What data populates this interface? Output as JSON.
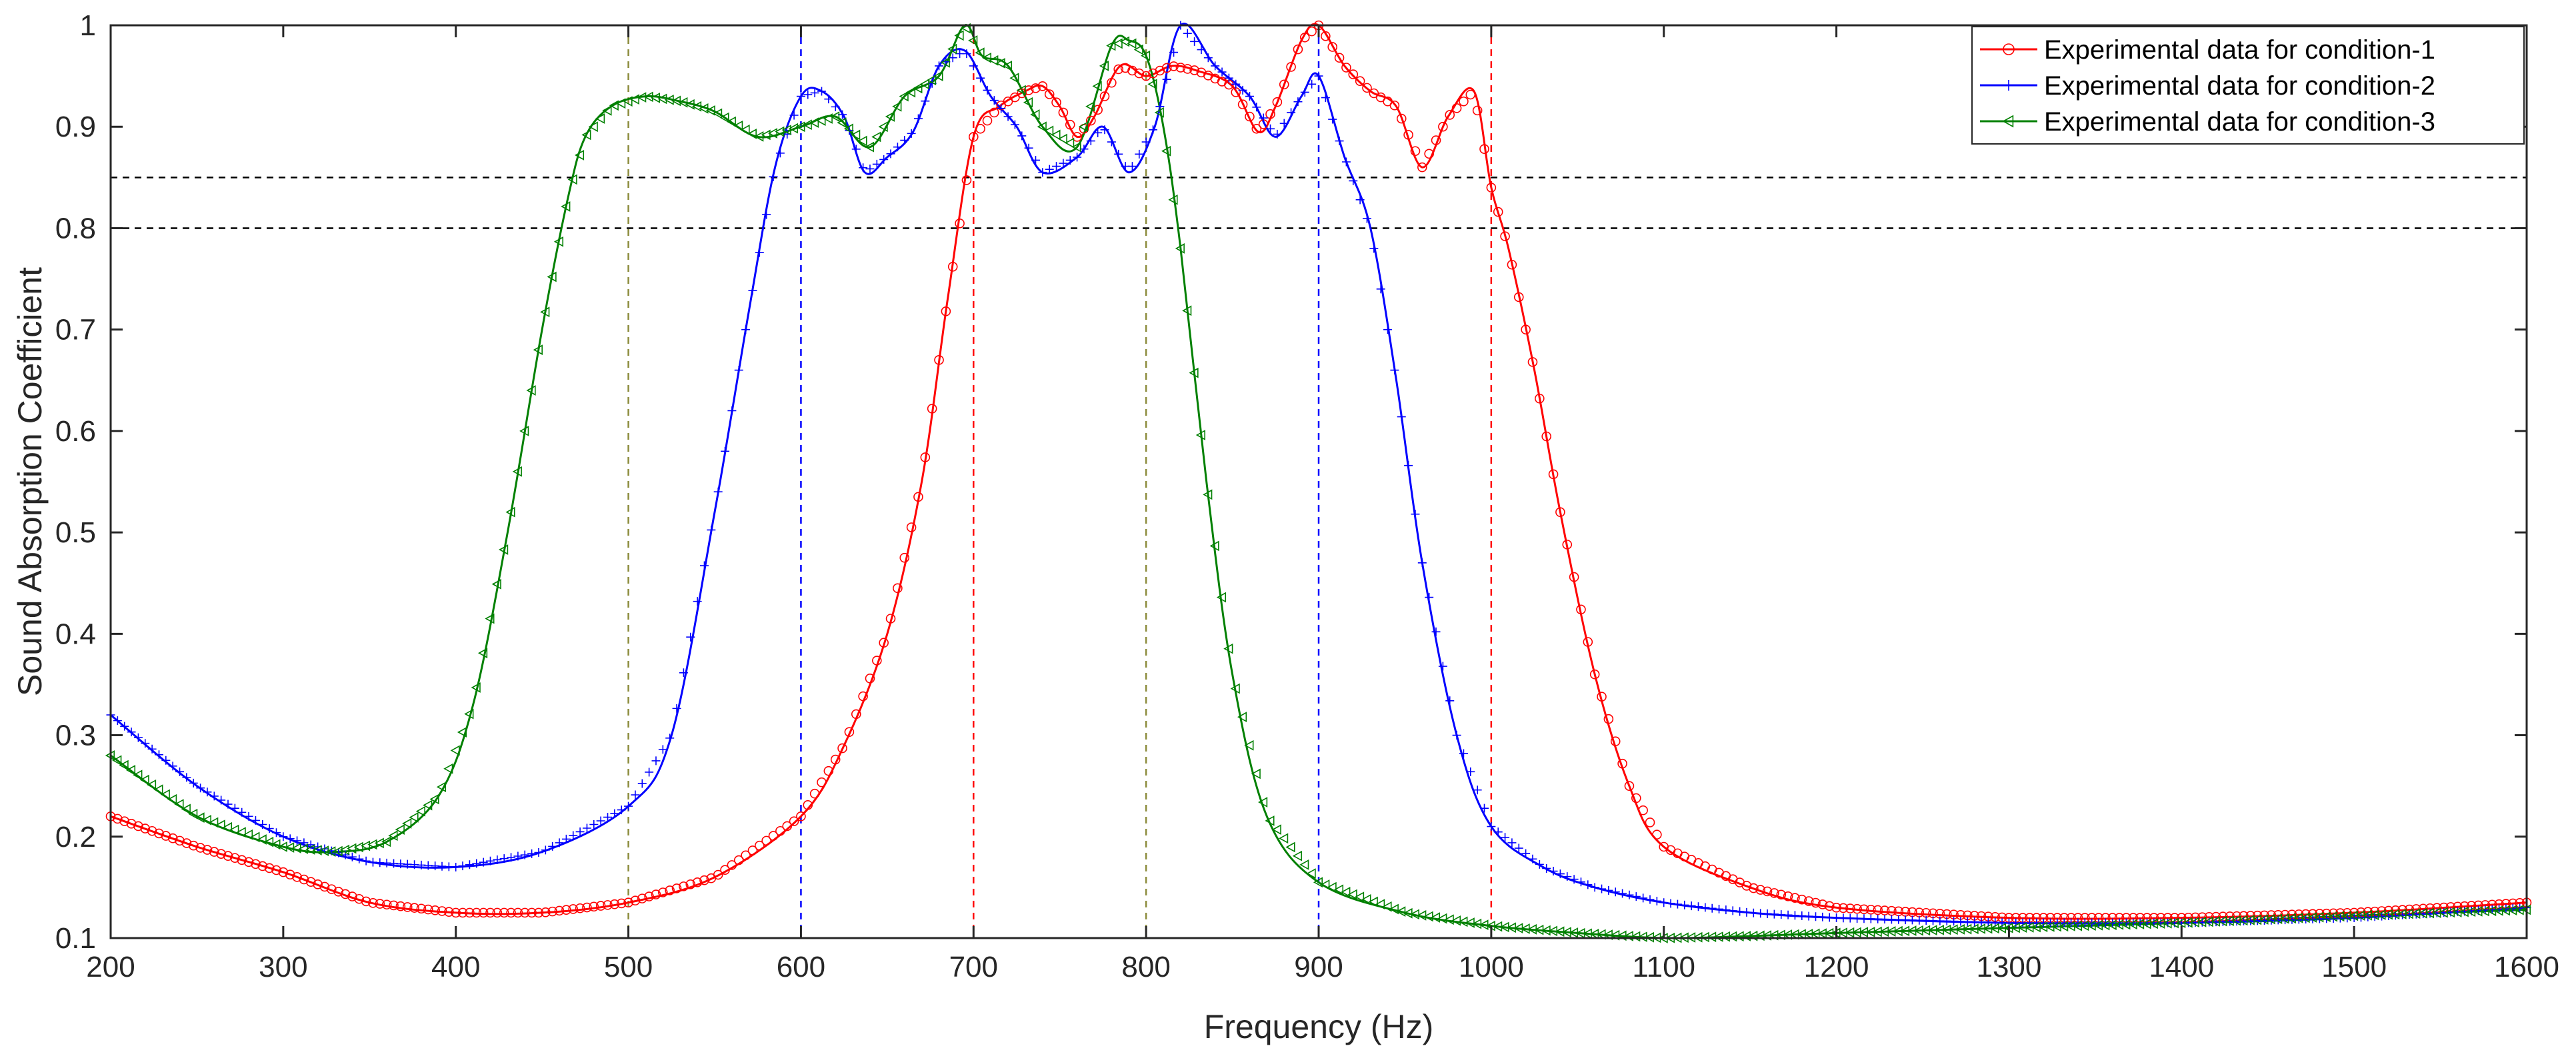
{
  "chart_data": {
    "type": "line",
    "title": "",
    "xlabel": "Frequency (Hz)",
    "ylabel": "Sound Absorption Coefficient",
    "xlim": [
      200,
      1600
    ],
    "ylim": [
      0.1,
      1.0
    ],
    "grid": false,
    "legend_position": "top-right",
    "xticks": [
      200,
      300,
      400,
      500,
      600,
      700,
      800,
      900,
      1000,
      1100,
      1200,
      1300,
      1400,
      1500,
      1600
    ],
    "yticks": [
      0.1,
      0.2,
      0.3,
      0.4,
      0.5,
      0.6,
      0.7,
      0.8,
      0.9,
      1
    ],
    "xtick_labels": [
      "200",
      "300",
      "400",
      "500",
      "600",
      "700",
      "800",
      "900",
      "1000",
      "1100",
      "1200",
      "1300",
      "1400",
      "1500",
      "1600"
    ],
    "ytick_labels": [
      "0.1",
      "0.2",
      "0.3",
      "0.4",
      "0.5",
      "0.6",
      "0.7",
      "0.8",
      "0.9",
      "1"
    ],
    "reference_lines": {
      "horizontal": [
        {
          "y": 0.85,
          "color": "#000000",
          "style": "dashed"
        },
        {
          "y": 0.8,
          "color": "#000000",
          "style": "dashed"
        }
      ],
      "vertical": [
        {
          "x": 500,
          "color": "#8c8c3c",
          "style": "dashed"
        },
        {
          "x": 600,
          "color": "#0000ff",
          "style": "dashed"
        },
        {
          "x": 700,
          "color": "#ff0000",
          "style": "dashed"
        },
        {
          "x": 800,
          "color": "#8c8c3c",
          "style": "dashed"
        },
        {
          "x": 900,
          "color": "#0000ff",
          "style": "dashed"
        },
        {
          "x": 1000,
          "color": "#ff0000",
          "style": "dashed"
        }
      ]
    },
    "series": [
      {
        "name": "Experimental data for condition-1",
        "color": "#ff0000",
        "marker": "circle",
        "x": [
          200,
          250,
          300,
          350,
          400,
          450,
          500,
          550,
          600,
          625,
          650,
          670,
          685,
          700,
          715,
          730,
          740,
          750,
          760,
          770,
          785,
          800,
          815,
          830,
          850,
          865,
          875,
          890,
          900,
          915,
          930,
          945,
          960,
          975,
          990,
          1000,
          1010,
          1025,
          1040,
          1060,
          1080,
          1100,
          1150,
          1200,
          1300,
          1400,
          1500,
          1600
        ],
        "y": [
          0.22,
          0.19,
          0.165,
          0.135,
          0.125,
          0.125,
          0.135,
          0.16,
          0.22,
          0.29,
          0.4,
          0.55,
          0.73,
          0.89,
          0.92,
          0.935,
          0.94,
          0.92,
          0.89,
          0.91,
          0.96,
          0.95,
          0.96,
          0.955,
          0.94,
          0.895,
          0.92,
          0.985,
          1.0,
          0.96,
          0.935,
          0.92,
          0.86,
          0.91,
          0.935,
          0.84,
          0.78,
          0.66,
          0.52,
          0.36,
          0.25,
          0.19,
          0.15,
          0.13,
          0.12,
          0.12,
          0.125,
          0.135
        ]
      },
      {
        "name": "Experimental data for condition-2",
        "color": "#0000ff",
        "marker": "plus",
        "x": [
          200,
          250,
          300,
          350,
          400,
          450,
          500,
          525,
          550,
          570,
          585,
          600,
          612,
          625,
          637,
          650,
          665,
          680,
          695,
          710,
          725,
          740,
          760,
          775,
          790,
          805,
          820,
          840,
          860,
          875,
          890,
          900,
          915,
          930,
          945,
          960,
          980,
          1000,
          1030,
          1060,
          1100,
          1150,
          1200,
          1300,
          1400,
          1500,
          1600
        ],
        "y": [
          0.32,
          0.25,
          0.2,
          0.175,
          0.17,
          0.185,
          0.23,
          0.3,
          0.52,
          0.72,
          0.86,
          0.93,
          0.935,
          0.91,
          0.855,
          0.87,
          0.895,
          0.96,
          0.975,
          0.93,
          0.9,
          0.855,
          0.87,
          0.9,
          0.855,
          0.9,
          1.0,
          0.96,
          0.93,
          0.89,
          0.93,
          0.95,
          0.87,
          0.8,
          0.65,
          0.47,
          0.3,
          0.21,
          0.17,
          0.15,
          0.135,
          0.125,
          0.12,
          0.115,
          0.115,
          0.12,
          0.13
        ]
      },
      {
        "name": "Experimental data for condition-3",
        "color": "#008000",
        "marker": "triangle-left",
        "x": [
          200,
          250,
          300,
          330,
          360,
          390,
          410,
          430,
          450,
          465,
          475,
          490,
          510,
          530,
          550,
          575,
          600,
          620,
          640,
          660,
          680,
          695,
          705,
          720,
          740,
          760,
          780,
          790,
          800,
          810,
          820,
          835,
          850,
          870,
          900,
          950,
          1000,
          1050,
          1100,
          1150,
          1200,
          1300,
          1400,
          1500,
          1600
        ],
        "y": [
          0.28,
          0.22,
          0.19,
          0.185,
          0.195,
          0.24,
          0.33,
          0.5,
          0.7,
          0.83,
          0.89,
          0.92,
          0.93,
          0.925,
          0.915,
          0.89,
          0.9,
          0.91,
          0.88,
          0.93,
          0.95,
          1.0,
          0.97,
          0.96,
          0.9,
          0.88,
          0.98,
          0.985,
          0.97,
          0.9,
          0.78,
          0.55,
          0.36,
          0.22,
          0.155,
          0.125,
          0.112,
          0.105,
          0.1,
          0.102,
          0.105,
          0.11,
          0.115,
          0.122,
          0.128
        ]
      }
    ]
  }
}
